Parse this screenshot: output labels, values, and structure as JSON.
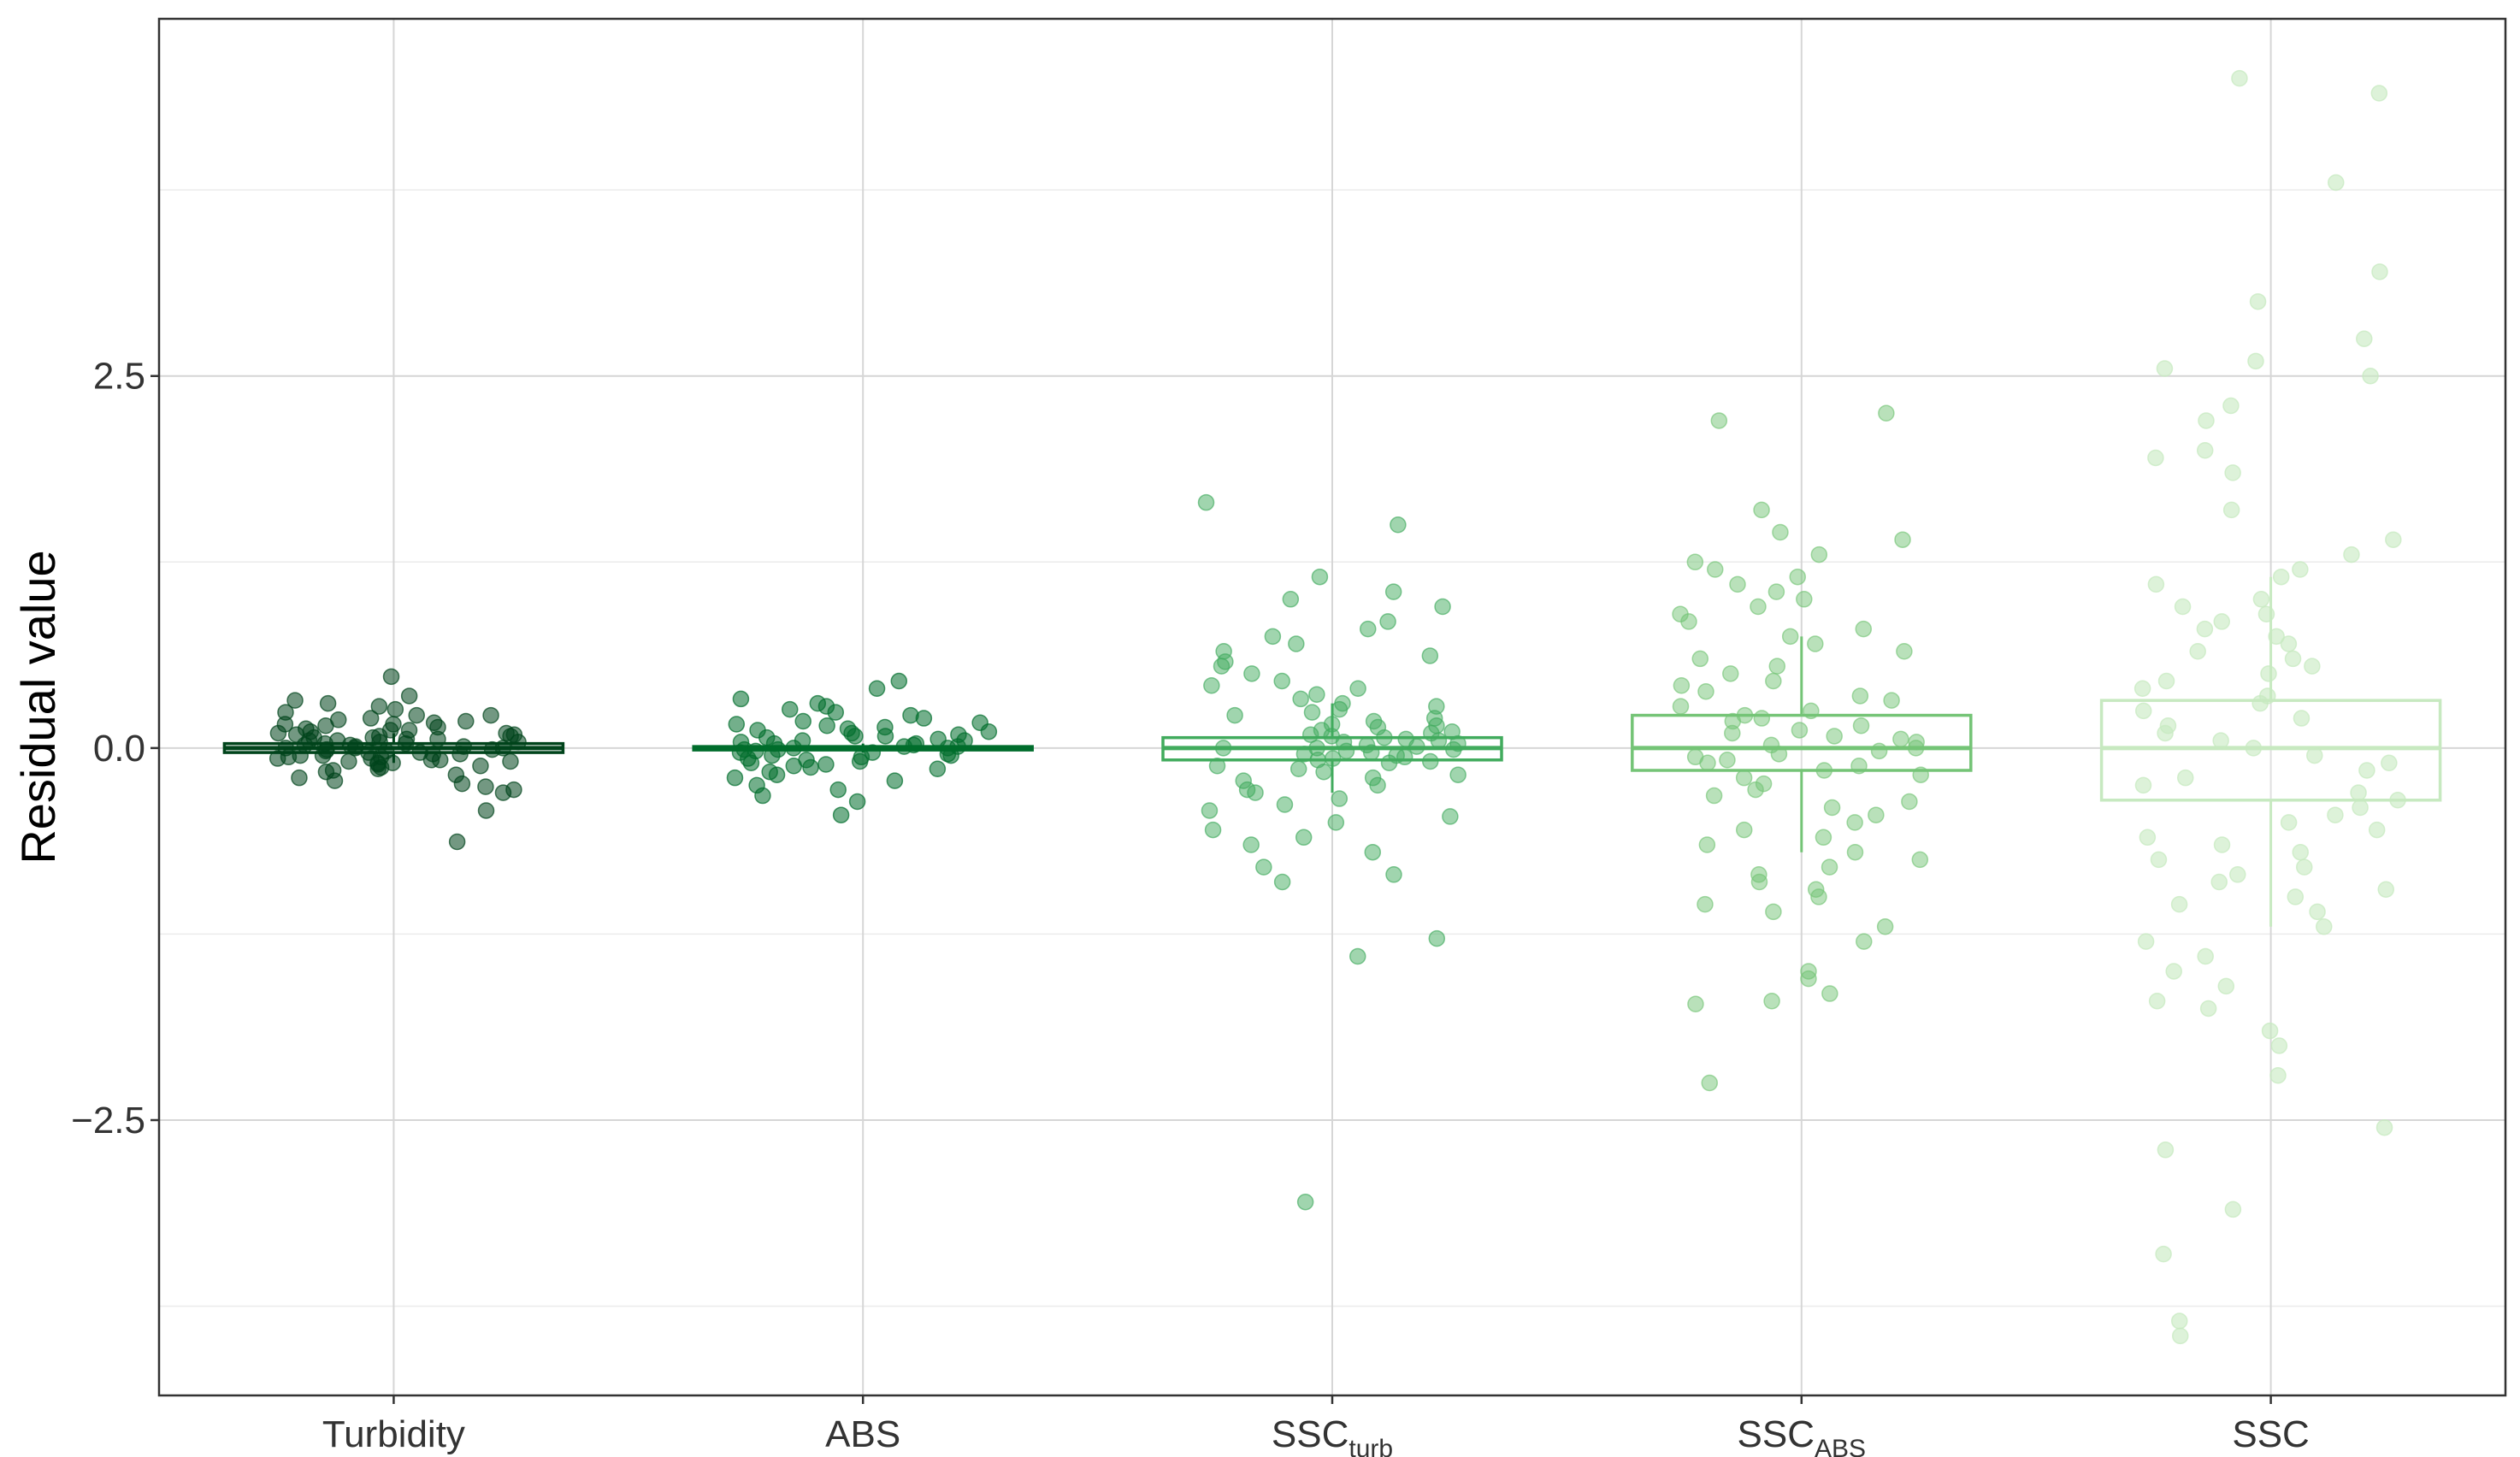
{
  "chart_data": {
    "type": "box-jitter",
    "title": "",
    "xlabel": "",
    "ylabel": "Residual value",
    "ylim": [
      -4.35,
      4.9
    ],
    "yticks": [
      {
        "value": 2.5,
        "label": "2.5"
      },
      {
        "value": 0.0,
        "label": "0.0"
      },
      {
        "value": -2.5,
        "label": "−2.5"
      }
    ],
    "minor_gridlines": [
      3.75,
      1.25,
      -1.25,
      -3.75
    ],
    "grid": true,
    "legend": "none",
    "categories": [
      {
        "key": "turbidity",
        "label": "Turbidity",
        "sub": ""
      },
      {
        "key": "abs",
        "label": "ABS",
        "sub": ""
      },
      {
        "key": "ssc_turb",
        "label": "SSC",
        "sub": "turb"
      },
      {
        "key": "ssc_abs",
        "label": "SSC",
        "sub": "ABS"
      },
      {
        "key": "ssc",
        "label": "SSC",
        "sub": ""
      }
    ],
    "series": [
      {
        "key": "turbidity",
        "color": "#00441b",
        "point_opacity": 0.55,
        "box": {
          "q1": -0.03,
          "median": 0.0,
          "q3": 0.03,
          "whisker_low": -0.1,
          "whisker_high": 0.1
        },
        "points": [
          0.48,
          0.35,
          0.32,
          0.3,
          0.28,
          0.26,
          0.24,
          0.22,
          0.22,
          0.2,
          0.19,
          0.18,
          0.17,
          0.16,
          0.16,
          0.15,
          0.14,
          0.13,
          0.12,
          0.12,
          0.11,
          0.1,
          0.1,
          0.09,
          0.09,
          0.08,
          0.08,
          0.07,
          0.07,
          0.06,
          0.06,
          0.05,
          0.05,
          0.04,
          0.04,
          0.03,
          0.03,
          0.02,
          0.02,
          0.01,
          0.01,
          0.0,
          0.0,
          0.0,
          -0.01,
          -0.01,
          -0.02,
          -0.02,
          -0.03,
          -0.03,
          -0.04,
          -0.04,
          -0.05,
          -0.05,
          -0.06,
          -0.06,
          -0.07,
          -0.07,
          -0.08,
          -0.08,
          -0.09,
          -0.09,
          -0.1,
          -0.1,
          -0.11,
          -0.12,
          -0.13,
          -0.14,
          -0.15,
          -0.16,
          -0.18,
          -0.2,
          -0.22,
          -0.24,
          -0.26,
          -0.28,
          -0.3,
          -0.42,
          -0.63
        ]
      },
      {
        "key": "abs",
        "color": "#006d2c",
        "point_opacity": 0.55,
        "box": {
          "q1": -0.01,
          "median": 0.0,
          "q3": 0.01,
          "whisker_low": -0.03,
          "whisker_high": 0.03
        },
        "points": [
          0.45,
          0.4,
          0.33,
          0.3,
          0.28,
          0.26,
          0.24,
          0.22,
          0.2,
          0.18,
          0.17,
          0.16,
          0.15,
          0.14,
          0.13,
          0.12,
          0.11,
          0.1,
          0.09,
          0.08,
          0.08,
          0.07,
          0.06,
          0.05,
          0.05,
          0.04,
          0.03,
          0.03,
          0.02,
          0.01,
          0.01,
          0.0,
          0.0,
          -0.01,
          -0.01,
          -0.02,
          -0.03,
          -0.03,
          -0.04,
          -0.05,
          -0.05,
          -0.06,
          -0.07,
          -0.08,
          -0.09,
          -0.1,
          -0.11,
          -0.12,
          -0.13,
          -0.14,
          -0.16,
          -0.18,
          -0.2,
          -0.22,
          -0.25,
          -0.28,
          -0.32,
          -0.36,
          -0.45
        ]
      },
      {
        "key": "ssc_turb",
        "color": "#41ab5d",
        "point_opacity": 0.5,
        "box": {
          "q1": -0.08,
          "median": 0.0,
          "q3": 0.07,
          "whisker_low": -0.3,
          "whisker_high": 0.3
        },
        "points": [
          1.65,
          1.5,
          1.15,
          1.05,
          1.0,
          0.95,
          0.85,
          0.8,
          0.75,
          0.7,
          0.65,
          0.62,
          0.58,
          0.55,
          0.5,
          0.45,
          0.42,
          0.4,
          0.36,
          0.33,
          0.3,
          0.28,
          0.26,
          0.24,
          0.22,
          0.2,
          0.18,
          0.16,
          0.15,
          0.14,
          0.12,
          0.11,
          0.1,
          0.09,
          0.08,
          0.07,
          0.06,
          0.05,
          0.04,
          0.03,
          0.02,
          0.01,
          0.0,
          0.0,
          -0.01,
          -0.02,
          -0.03,
          -0.04,
          -0.05,
          -0.06,
          -0.07,
          -0.08,
          -0.09,
          -0.1,
          -0.12,
          -0.14,
          -0.16,
          -0.18,
          -0.2,
          -0.22,
          -0.25,
          -0.28,
          -0.3,
          -0.34,
          -0.38,
          -0.42,
          -0.46,
          -0.5,
          -0.55,
          -0.6,
          -0.65,
          -0.7,
          -0.8,
          -0.85,
          -0.9,
          -1.28,
          -1.4,
          -3.05
        ]
      },
      {
        "key": "ssc_abs",
        "color": "#74c476",
        "point_opacity": 0.5,
        "box": {
          "q1": -0.15,
          "median": 0.0,
          "q3": 0.22,
          "whisker_low": -0.7,
          "whisker_high": 0.75
        },
        "points": [
          2.25,
          2.2,
          1.6,
          1.45,
          1.4,
          1.3,
          1.25,
          1.2,
          1.15,
          1.1,
          1.05,
          1.0,
          0.95,
          0.9,
          0.85,
          0.8,
          0.75,
          0.7,
          0.65,
          0.6,
          0.55,
          0.5,
          0.45,
          0.42,
          0.38,
          0.35,
          0.32,
          0.28,
          0.25,
          0.22,
          0.2,
          0.18,
          0.15,
          0.12,
          0.1,
          0.08,
          0.06,
          0.04,
          0.02,
          0.0,
          -0.02,
          -0.04,
          -0.06,
          -0.08,
          -0.1,
          -0.12,
          -0.15,
          -0.18,
          -0.2,
          -0.24,
          -0.28,
          -0.32,
          -0.36,
          -0.4,
          -0.45,
          -0.5,
          -0.55,
          -0.6,
          -0.65,
          -0.7,
          -0.75,
          -0.8,
          -0.85,
          -0.9,
          -0.95,
          -1.0,
          -1.05,
          -1.1,
          -1.2,
          -1.3,
          -1.5,
          -1.55,
          -1.65,
          -1.7,
          -1.72,
          -2.25
        ]
      },
      {
        "key": "ssc",
        "color": "#c7e9c0",
        "point_opacity": 0.6,
        "box": {
          "q1": -0.35,
          "median": 0.0,
          "q3": 0.32,
          "whisker_low": -1.2,
          "whisker_high": 1.15
        },
        "points": [
          4.5,
          4.4,
          3.8,
          3.2,
          3.0,
          2.75,
          2.6,
          2.55,
          2.5,
          2.3,
          2.2,
          2.0,
          1.95,
          1.85,
          1.6,
          1.4,
          1.3,
          1.2,
          1.15,
          1.1,
          1.0,
          0.95,
          0.9,
          0.85,
          0.8,
          0.75,
          0.7,
          0.65,
          0.6,
          0.55,
          0.5,
          0.45,
          0.4,
          0.35,
          0.3,
          0.25,
          0.2,
          0.15,
          0.1,
          0.05,
          0.0,
          -0.05,
          -0.1,
          -0.15,
          -0.2,
          -0.25,
          -0.3,
          -0.35,
          -0.4,
          -0.45,
          -0.5,
          -0.55,
          -0.6,
          -0.65,
          -0.7,
          -0.75,
          -0.8,
          -0.85,
          -0.9,
          -0.95,
          -1.0,
          -1.05,
          -1.1,
          -1.2,
          -1.3,
          -1.4,
          -1.5,
          -1.6,
          -1.7,
          -1.75,
          -1.9,
          -2.0,
          -2.2,
          -2.55,
          -2.7,
          -3.1,
          -3.4,
          -3.85,
          -3.95
        ]
      }
    ]
  }
}
